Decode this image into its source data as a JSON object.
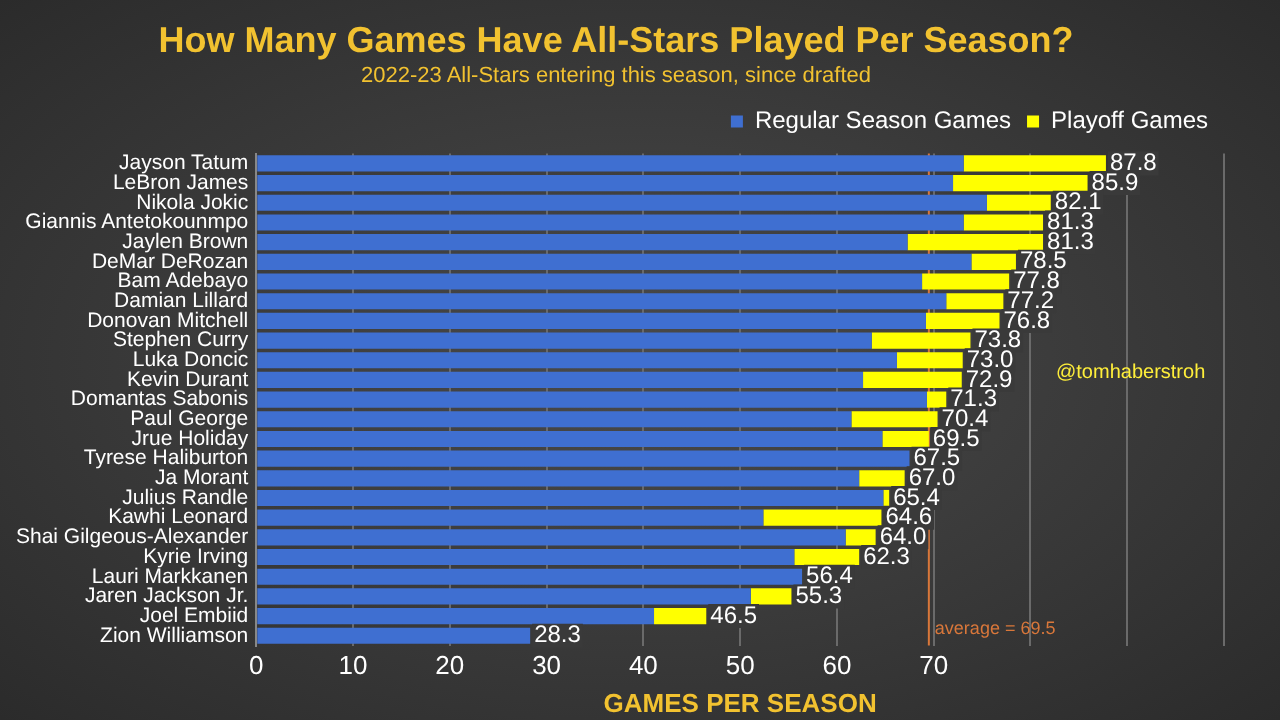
{
  "chart_data": {
    "type": "bar",
    "orientation": "horizontal",
    "stacked": true,
    "title": "How Many Games Have All-Stars Played Per Season?",
    "subtitle": "2022-23 All-Stars entering this season, since drafted",
    "xlabel": "GAMES PER SEASON",
    "categories": [
      "Jayson Tatum",
      "LeBron James",
      "Nikola Jokic",
      "Giannis Antetokounmpo",
      "Jaylen Brown",
      "DeMar DeRozan",
      "Bam Adebayo",
      "Damian Lillard",
      "Donovan Mitchell",
      "Stephen Curry",
      "Luka Doncic",
      "Kevin Durant",
      "Domantas Sabonis",
      "Paul George",
      "Jrue Holiday",
      "Tyrese Haliburton",
      "Ja Morant",
      "Julius Randle",
      "Kawhi Leonard",
      "Shai Gilgeous-Alexander",
      "Kyrie Irving",
      "Lauri Markkanen",
      "Jaren Jackson Jr.",
      "Joel Embiid",
      "Zion Williamson"
    ],
    "series": [
      {
        "name": "Regular Season Games",
        "color": "#3f6fd1",
        "values": [
          73.1,
          72.0,
          75.5,
          73.1,
          67.3,
          73.9,
          68.8,
          71.3,
          69.2,
          63.6,
          66.2,
          62.7,
          69.3,
          61.5,
          64.7,
          67.5,
          62.3,
          64.8,
          52.4,
          60.9,
          55.6,
          56.4,
          51.1,
          41.1,
          28.3
        ]
      },
      {
        "name": "Playoff Games",
        "color": "#ffff00",
        "values": [
          14.7,
          13.9,
          6.6,
          8.2,
          14.0,
          4.6,
          9.0,
          5.9,
          7.6,
          10.2,
          6.8,
          10.2,
          2.0,
          8.9,
          4.8,
          0,
          4.7,
          0.6,
          12.2,
          3.1,
          6.7,
          0,
          4.2,
          5.4,
          0
        ]
      }
    ],
    "totals": [
      "87.8",
      "85.9",
      "82.1",
      "81.3",
      "81.3",
      "78.5",
      "77.8",
      "77.2",
      "76.8",
      "73.8",
      "73.0",
      "72.9",
      "71.3",
      "70.4",
      "69.5",
      "67.5",
      "67.0",
      "65.4",
      "64.6",
      "64.0",
      "62.3",
      "56.4",
      "55.3",
      "46.5",
      "28.3"
    ],
    "xlim": [
      0,
      100
    ],
    "xticks": [
      0,
      10,
      20,
      30,
      40,
      50,
      60,
      70,
      {
        "value": 80,
        "label": null
      },
      {
        "value": 90,
        "label": null
      },
      {
        "value": 100,
        "label": null
      }
    ],
    "grid": "x",
    "legend": "top right",
    "ref_lines": [
      {
        "axis": "x",
        "value": 69.5,
        "label": "average = 69.5",
        "color": "#d9773a"
      }
    ],
    "annotations": [
      "@tomhaberstroh"
    ]
  }
}
